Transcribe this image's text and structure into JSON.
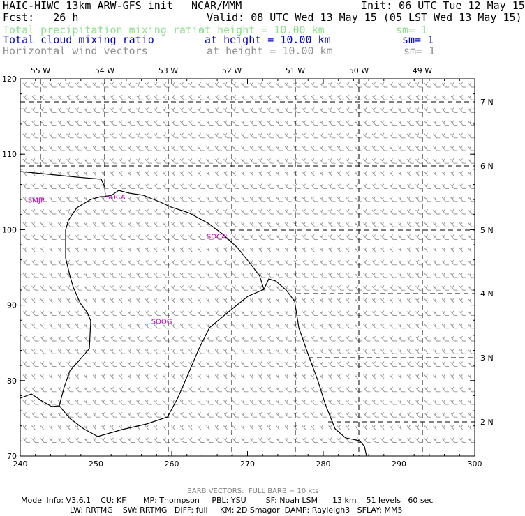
{
  "header": {
    "model": "HAIC-HIWC 13km ARW-GFS init",
    "org": "NCAR/MMM",
    "init": "Init: 06 UTC Tue 12 May 15",
    "fcst": "Fcst:   26 h",
    "valid": "Valid: 08 UTC Wed 13 May 15 (05 LST Wed 13 May 15)"
  },
  "fields": [
    {
      "name": "Total precipitation mixing ratio",
      "height": "at height = 10.00 km",
      "sm": "sm= 1",
      "color": "#90e090"
    },
    {
      "name": "Total cloud mixing ratio",
      "height": "at height = 10.00 km",
      "sm": "sm= 1",
      "color": "#0000c8"
    },
    {
      "name": "Horizontal wind vectors",
      "height": "at height = 10.00 km",
      "sm": "sm= 1",
      "color": "#909090"
    }
  ],
  "map": {
    "x_ticks": [
      240,
      250,
      260,
      270,
      280,
      290,
      300
    ],
    "x_tick_labels": [
      "240",
      "250",
      "260",
      "270",
      "280",
      "290",
      "300"
    ],
    "y_ticks": [
      70,
      80,
      90,
      100,
      110,
      120
    ],
    "y_tick_labels": [
      "70",
      "80",
      "90",
      "100",
      "110",
      "120"
    ],
    "x_range": [
      240,
      300
    ],
    "y_range": [
      70,
      120
    ],
    "lon_labels": [
      "55 W",
      "54 W",
      "53 W",
      "52 W",
      "51 W",
      "50 W",
      "49 W"
    ],
    "lat_labels": [
      "7 N",
      "6 N",
      "5 N",
      "4 N",
      "3 N",
      "2 N"
    ],
    "stations": [
      {
        "id": "SMJP",
        "x": 241,
        "y": 103.6
      },
      {
        "id": "SOCA",
        "x": 251.3,
        "y": 104.0
      },
      {
        "id": "SOCA",
        "x": 264.6,
        "y": 98.8
      },
      {
        "id": "SOOG",
        "x": 257.3,
        "y": 87.5
      }
    ],
    "grid_color": "#000000",
    "coast_color": "#000000",
    "barb_color": "#909090"
  },
  "footer": {
    "barb_note": "BARB VECTORS:  FULL BARB = 10 kts",
    "line1": "Model Info: V3.6.1    CU: KF       MP: Thompson     PBL: YSU        SF: Noah LSM      13 km    51 levels   60 sec",
    "line2": "LW: RRTMG    SW: RRTMG   DIFF: full     KM: 2D Smagor  DAMP: Rayleigh3   SFLAY: MM5"
  }
}
